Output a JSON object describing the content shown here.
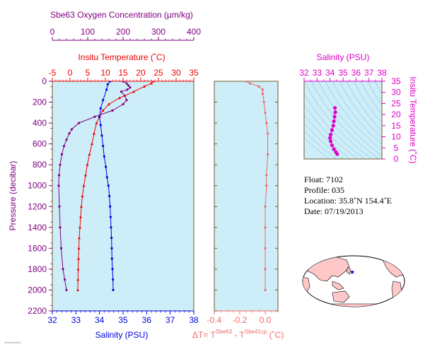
{
  "colors": {
    "panel_bg": "#cdeef8",
    "oxygen": "#800080",
    "temperature": "#ee0000",
    "salinity": "#0000dd",
    "delta": "#f06a6a",
    "ts": "#e000c8",
    "pressure_axis": "#800080",
    "frame": "#6b5a2a",
    "land": "#ffc8c8"
  },
  "axes": {
    "oxygen": {
      "title": "Sbe63 Oxygen Concentration (µm/kg)",
      "range": [
        0,
        400
      ],
      "ticks": [
        "0",
        "100",
        "200",
        "300",
        "400"
      ]
    },
    "temperature": {
      "title": "Insitu Temperature (˚C)",
      "range": [
        -5,
        35
      ],
      "ticks": [
        "-5",
        "0",
        "5",
        "10",
        "15",
        "20",
        "25",
        "30",
        "35"
      ]
    },
    "salinity": {
      "title": "Salinity (PSU)",
      "range": [
        32,
        38
      ],
      "ticks": [
        "32",
        "33",
        "34",
        "35",
        "36",
        "37",
        "38"
      ]
    },
    "pressure": {
      "title": "Pressure (decibar)",
      "range": [
        0,
        2200
      ],
      "ticks": [
        "0",
        "200",
        "400",
        "600",
        "800",
        "1000",
        "1200",
        "1400",
        "1600",
        "1800",
        "2000",
        "2200"
      ]
    },
    "delta": {
      "title_main": "ΔT= T",
      "sup1": "Sbe63",
      "title_mid": " - T",
      "sup2": "Sbe41cp",
      "title_end": " (˚C)",
      "range": [
        -0.4,
        0.1
      ],
      "ticks": [
        "-0.4",
        "-0.2",
        "0.0"
      ]
    },
    "ts_salinity": {
      "title": "Salinity (PSU)",
      "range": [
        32,
        38
      ],
      "ticks": [
        "32",
        "33",
        "34",
        "35",
        "36",
        "37",
        "38"
      ]
    },
    "ts_temperature": {
      "title": "Insitu Temperature (˚C)",
      "range": [
        0,
        35
      ],
      "ticks": [
        "0",
        "5",
        "10",
        "15",
        "20",
        "25",
        "30",
        "35"
      ]
    }
  },
  "info": {
    "float": "Float:  7102",
    "profile": "Profile:  035",
    "location": "Location:  35.8˚N  154.4˚E",
    "date": "Date:  07/19/2013"
  },
  "chart_data": [
    {
      "type": "line",
      "panel": "profiles",
      "y_axis": "pressure (decibar)",
      "series": [
        {
          "name": "Oxygen",
          "x_axis": "oxygen",
          "values": [
            [
              200,
              0
            ],
            [
              210,
              20
            ],
            [
              215,
              40
            ],
            [
              220,
              60
            ],
            [
              212,
              80
            ],
            [
              195,
              100
            ],
            [
              205,
              140
            ],
            [
              210,
              180
            ],
            [
              200,
              220
            ],
            [
              170,
              280
            ],
            [
              120,
              340
            ],
            [
              75,
              400
            ],
            [
              55,
              460
            ],
            [
              48,
              500
            ],
            [
              40,
              560
            ],
            [
              33,
              620
            ],
            [
              27,
              700
            ],
            [
              22,
              800
            ],
            [
              19,
              900
            ],
            [
              18,
              1000
            ],
            [
              20,
              1200
            ],
            [
              22,
              1400
            ],
            [
              25,
              1600
            ],
            [
              30,
              1800
            ],
            [
              35,
              1900
            ],
            [
              40,
              2000
            ]
          ]
        },
        {
          "name": "Temperature",
          "x_axis": "temperature",
          "values": [
            [
              23.5,
              0
            ],
            [
              23,
              20
            ],
            [
              21,
              50
            ],
            [
              18,
              100
            ],
            [
              14,
              160
            ],
            [
              11,
              220
            ],
            [
              9.3,
              280
            ],
            [
              8.3,
              340
            ],
            [
              7.5,
              400
            ],
            [
              6.8,
              500
            ],
            [
              6.2,
              600
            ],
            [
              5.5,
              700
            ],
            [
              4.9,
              800
            ],
            [
              4.4,
              900
            ],
            [
              3.9,
              1000
            ],
            [
              3.5,
              1100
            ],
            [
              3.2,
              1200
            ],
            [
              3.0,
              1300
            ],
            [
              2.8,
              1400
            ],
            [
              2.6,
              1500
            ],
            [
              2.5,
              1600
            ],
            [
              2.4,
              1700
            ],
            [
              2.3,
              1800
            ],
            [
              2.25,
              1900
            ],
            [
              2.2,
              2000
            ]
          ]
        },
        {
          "name": "Salinity",
          "x_axis": "salinity",
          "values": [
            [
              34.45,
              0
            ],
            [
              34.35,
              30
            ],
            [
              34.3,
              80
            ],
            [
              34.15,
              180
            ],
            [
              34.05,
              260
            ],
            [
              34.0,
              340
            ],
            [
              34.05,
              420
            ],
            [
              34.1,
              520
            ],
            [
              34.15,
              620
            ],
            [
              34.2,
              720
            ],
            [
              34.27,
              820
            ],
            [
              34.32,
              920
            ],
            [
              34.38,
              1000
            ],
            [
              34.42,
              1100
            ],
            [
              34.45,
              1200
            ],
            [
              34.47,
              1300
            ],
            [
              34.49,
              1400
            ],
            [
              34.51,
              1500
            ],
            [
              34.52,
              1600
            ],
            [
              34.53,
              1700
            ],
            [
              34.55,
              1800
            ],
            [
              34.57,
              1900
            ],
            [
              34.58,
              2000
            ]
          ]
        }
      ]
    },
    {
      "type": "line",
      "panel": "delta",
      "series": [
        {
          "name": "Delta T",
          "values": [
            [
              -0.15,
              0
            ],
            [
              -0.12,
              20
            ],
            [
              -0.05,
              50
            ],
            [
              -0.02,
              80
            ],
            [
              -0.02,
              120
            ],
            [
              -0.01,
              200
            ],
            [
              0.0,
              300
            ],
            [
              0.01,
              400
            ],
            [
              0.02,
              500
            ],
            [
              0.02,
              700
            ],
            [
              0.01,
              900
            ],
            [
              0.01,
              1000
            ],
            [
              0.0,
              1200
            ],
            [
              0.0,
              1400
            ],
            [
              0.0,
              1600
            ],
            [
              0.0,
              1800
            ],
            [
              0.0,
              2000
            ]
          ]
        }
      ]
    },
    {
      "type": "scatter",
      "panel": "ts_diagram",
      "series": [
        {
          "name": "T-S",
          "values": [
            [
              34.55,
              2.2
            ],
            [
              34.45,
              3.2
            ],
            [
              34.3,
              4.5
            ],
            [
              34.15,
              6.2
            ],
            [
              34.05,
              8
            ],
            [
              34.0,
              9.5
            ],
            [
              34.05,
              11
            ],
            [
              34.15,
              13
            ],
            [
              34.25,
              15
            ],
            [
              34.3,
              17
            ],
            [
              34.35,
              19
            ],
            [
              34.4,
              21
            ],
            [
              34.38,
              23
            ]
          ]
        }
      ]
    }
  ]
}
